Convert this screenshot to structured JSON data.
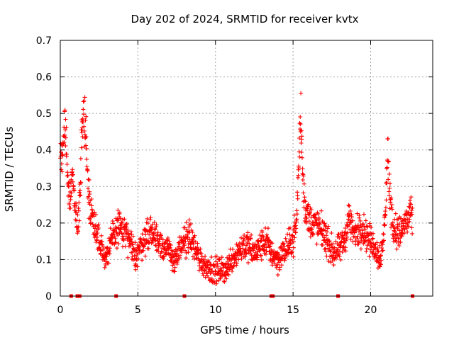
{
  "chart_data": {
    "type": "scatter",
    "title": "Day 202 of 2024, SRMTID for receiver kvtx",
    "xlabel": "GPS time / hours",
    "ylabel": "SRMTID / TECUs",
    "xlim": [
      0,
      24
    ],
    "ylim": [
      0,
      0.7
    ],
    "xticks": [
      0,
      5,
      10,
      15,
      20
    ],
    "xtick_labels": [
      "0",
      "5",
      "10",
      "15",
      "20"
    ],
    "yticks": [
      0,
      0.1,
      0.2,
      0.3,
      0.4,
      0.5,
      0.6,
      0.7
    ],
    "ytick_labels": [
      "0",
      "0.1",
      "0.2",
      "0.3",
      "0.4",
      "0.5",
      "0.6",
      "0.7"
    ],
    "grid": true,
    "marker": "+",
    "series": [
      {
        "name": "SRMTID",
        "color": "#ff0000",
        "trend": [
          [
            0.0,
            0.35
          ],
          [
            0.1,
            0.4
          ],
          [
            0.2,
            0.45
          ],
          [
            0.3,
            0.48
          ],
          [
            0.4,
            0.42
          ],
          [
            0.5,
            0.3
          ],
          [
            0.6,
            0.26
          ],
          [
            0.7,
            0.3
          ],
          [
            0.8,
            0.34
          ],
          [
            0.9,
            0.25
          ],
          [
            1.0,
            0.21
          ],
          [
            1.1,
            0.18
          ],
          [
            1.2,
            0.25
          ],
          [
            1.3,
            0.33
          ],
          [
            1.4,
            0.45
          ],
          [
            1.5,
            0.52
          ],
          [
            1.6,
            0.46
          ],
          [
            1.7,
            0.38
          ],
          [
            1.8,
            0.3
          ],
          [
            1.9,
            0.26
          ],
          [
            2.0,
            0.23
          ],
          [
            2.2,
            0.2
          ],
          [
            2.4,
            0.17
          ],
          [
            2.6,
            0.14
          ],
          [
            2.8,
            0.12
          ],
          [
            3.0,
            0.11
          ],
          [
            3.2,
            0.13
          ],
          [
            3.4,
            0.16
          ],
          [
            3.6,
            0.18
          ],
          [
            3.8,
            0.19
          ],
          [
            4.0,
            0.18
          ],
          [
            4.2,
            0.17
          ],
          [
            4.4,
            0.15
          ],
          [
            4.6,
            0.13
          ],
          [
            4.8,
            0.11
          ],
          [
            5.0,
            0.12
          ],
          [
            5.2,
            0.14
          ],
          [
            5.4,
            0.16
          ],
          [
            5.6,
            0.17
          ],
          [
            5.8,
            0.18
          ],
          [
            6.0,
            0.17
          ],
          [
            6.2,
            0.16
          ],
          [
            6.4,
            0.15
          ],
          [
            6.6,
            0.14
          ],
          [
            6.8,
            0.13
          ],
          [
            7.0,
            0.12
          ],
          [
            7.2,
            0.11
          ],
          [
            7.4,
            0.1
          ],
          [
            7.6,
            0.11
          ],
          [
            7.8,
            0.13
          ],
          [
            8.0,
            0.15
          ],
          [
            8.2,
            0.17
          ],
          [
            8.4,
            0.16
          ],
          [
            8.6,
            0.14
          ],
          [
            8.8,
            0.12
          ],
          [
            9.0,
            0.1
          ],
          [
            9.2,
            0.09
          ],
          [
            9.4,
            0.08
          ],
          [
            9.6,
            0.08
          ],
          [
            9.8,
            0.07
          ],
          [
            10.0,
            0.07
          ],
          [
            10.2,
            0.07
          ],
          [
            10.4,
            0.07
          ],
          [
            10.6,
            0.07
          ],
          [
            10.8,
            0.08
          ],
          [
            11.0,
            0.1
          ],
          [
            11.2,
            0.11
          ],
          [
            11.4,
            0.12
          ],
          [
            11.6,
            0.13
          ],
          [
            11.8,
            0.14
          ],
          [
            12.0,
            0.14
          ],
          [
            12.2,
            0.13
          ],
          [
            12.4,
            0.12
          ],
          [
            12.6,
            0.12
          ],
          [
            12.8,
            0.13
          ],
          [
            13.0,
            0.14
          ],
          [
            13.2,
            0.15
          ],
          [
            13.4,
            0.14
          ],
          [
            13.6,
            0.12
          ],
          [
            13.8,
            0.11
          ],
          [
            14.0,
            0.1
          ],
          [
            14.2,
            0.11
          ],
          [
            14.4,
            0.12
          ],
          [
            14.6,
            0.13
          ],
          [
            14.8,
            0.14
          ],
          [
            15.0,
            0.16
          ],
          [
            15.2,
            0.19
          ],
          [
            15.3,
            0.28
          ],
          [
            15.4,
            0.4
          ],
          [
            15.5,
            0.5
          ],
          [
            15.6,
            0.36
          ],
          [
            15.7,
            0.28
          ],
          [
            15.8,
            0.24
          ],
          [
            16.0,
            0.21
          ],
          [
            16.2,
            0.2
          ],
          [
            16.4,
            0.2
          ],
          [
            16.6,
            0.19
          ],
          [
            16.8,
            0.18
          ],
          [
            17.0,
            0.17
          ],
          [
            17.2,
            0.15
          ],
          [
            17.4,
            0.13
          ],
          [
            17.6,
            0.12
          ],
          [
            17.8,
            0.12
          ],
          [
            18.0,
            0.13
          ],
          [
            18.2,
            0.14
          ],
          [
            18.4,
            0.17
          ],
          [
            18.6,
            0.22
          ],
          [
            18.8,
            0.18
          ],
          [
            19.0,
            0.17
          ],
          [
            19.2,
            0.18
          ],
          [
            19.4,
            0.19
          ],
          [
            19.6,
            0.18
          ],
          [
            19.8,
            0.16
          ],
          [
            20.0,
            0.15
          ],
          [
            20.2,
            0.14
          ],
          [
            20.4,
            0.12
          ],
          [
            20.6,
            0.11
          ],
          [
            20.8,
            0.14
          ],
          [
            21.0,
            0.28
          ],
          [
            21.1,
            0.4
          ],
          [
            21.2,
            0.3
          ],
          [
            21.4,
            0.2
          ],
          [
            21.6,
            0.18
          ],
          [
            21.8,
            0.17
          ],
          [
            22.0,
            0.18
          ],
          [
            22.2,
            0.2
          ],
          [
            22.4,
            0.21
          ],
          [
            22.6,
            0.22
          ],
          [
            22.7,
            0.2
          ]
        ],
        "spread": 0.045,
        "samples_per_hour": 70
      }
    ],
    "gap_markers_x": [
      0.7,
      1.1,
      1.25,
      3.6,
      8.0,
      13.6,
      13.7,
      17.9,
      22.7
    ]
  }
}
